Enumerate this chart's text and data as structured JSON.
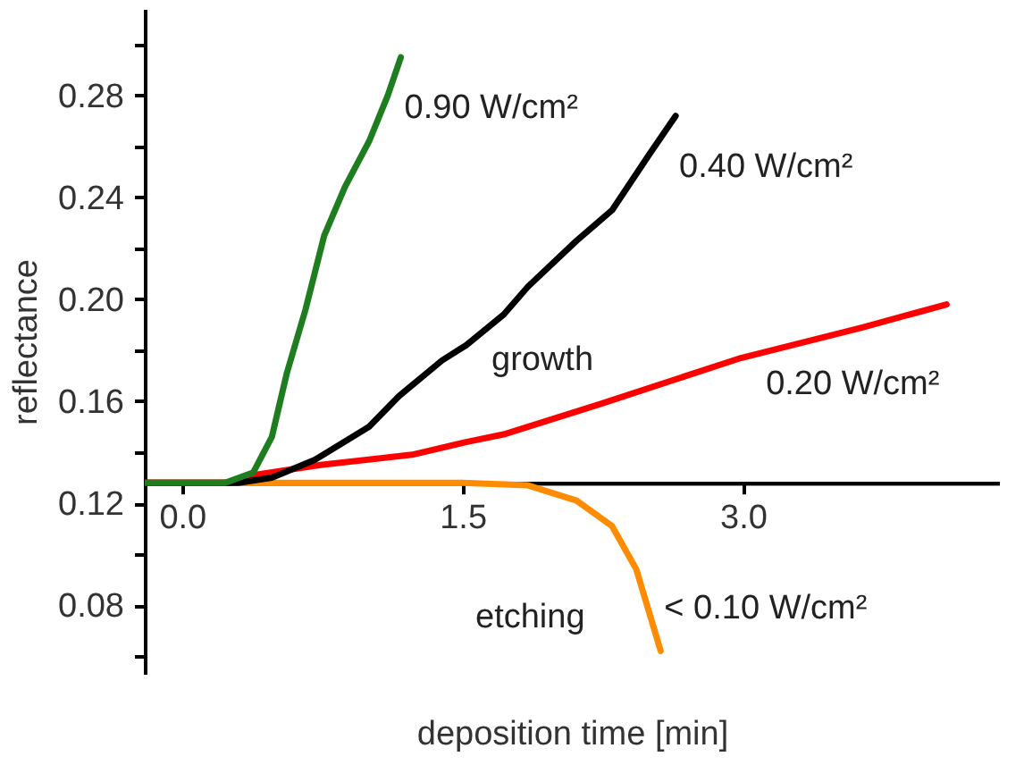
{
  "chart_data": {
    "type": "line",
    "xlabel": "deposition time [min]",
    "ylabel": "reflectance",
    "xlim": [
      -0.2,
      4.37
    ],
    "ylim": [
      0.053,
      0.314
    ],
    "xticks": [
      {
        "value": 0,
        "label": "0.0"
      },
      1.5,
      {
        "value": 3,
        "label": "3.0"
      }
    ],
    "yticks": [
      {
        "value": 0.06,
        "label": null
      },
      0.08,
      {
        "value": 0.1,
        "label": null
      },
      0.12,
      {
        "value": 0.14,
        "label": null
      },
      0.16,
      {
        "value": 0.18,
        "label": null
      },
      {
        "value": 0.2,
        "label": "0.20"
      },
      {
        "value": 0.22,
        "label": null
      },
      0.24,
      {
        "value": 0.26,
        "label": null
      },
      0.28,
      {
        "value": 0.3,
        "label": null
      }
    ],
    "grid": false,
    "legend": false,
    "line_style": "solid",
    "marker": "none",
    "series": [
      {
        "name": "< 0.10 W/cm²",
        "color": "#ff8c00",
        "x": [
          -0.2,
          0.25,
          1.0,
          1.5,
          1.85,
          2.11,
          2.3,
          2.43,
          2.56
        ],
        "values": [
          0.128,
          0.128,
          0.128,
          0.128,
          0.127,
          0.121,
          0.111,
          0.094,
          0.062
        ]
      },
      {
        "name": "0.20 W/cm²",
        "color": "#ff0000",
        "x": [
          -0.2,
          0.25,
          0.38,
          0.74,
          1.23,
          1.52,
          1.72,
          2.24,
          2.99,
          3.64,
          4.09
        ],
        "values": [
          0.128,
          0.128,
          0.131,
          0.135,
          0.139,
          0.144,
          0.147,
          0.159,
          0.177,
          0.189,
          0.198
        ]
      },
      {
        "name": "0.40 W/cm²",
        "color": "#000000",
        "x": [
          -0.2,
          0.3,
          0.48,
          0.71,
          1.0,
          1.16,
          1.39,
          1.52,
          1.72,
          1.85,
          2.11,
          2.3,
          2.5,
          2.64
        ],
        "values": [
          0.128,
          0.128,
          0.13,
          0.137,
          0.15,
          0.162,
          0.176,
          0.182,
          0.194,
          0.205,
          0.223,
          0.235,
          0.257,
          0.272
        ]
      },
      {
        "name": "0.90 W/cm²",
        "color": "#1e7d1e",
        "x": [
          -0.2,
          0.23,
          0.38,
          0.48,
          0.56,
          0.66,
          0.76,
          0.87,
          1.0,
          1.1,
          1.17
        ],
        "values": [
          0.128,
          0.128,
          0.132,
          0.146,
          0.171,
          0.196,
          0.225,
          0.244,
          0.262,
          0.28,
          0.295
        ]
      }
    ],
    "annotations": [
      "growth",
      "etching"
    ]
  }
}
